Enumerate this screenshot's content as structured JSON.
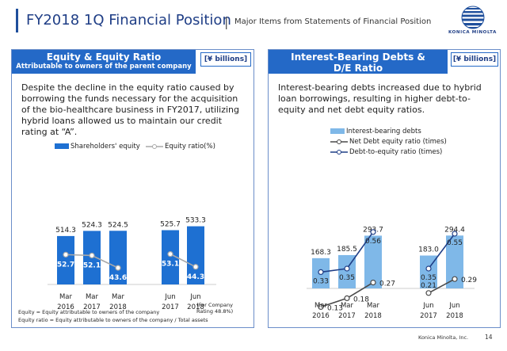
{
  "header": {
    "title": "FY2018 1Q Financial Position",
    "separator": "|",
    "subtitle": "Major Items from Statements of Financial Position",
    "logo_text": "KONICA MINOLTA"
  },
  "left_panel": {
    "title": "Equity & Equity Ratio",
    "subtitle": "Attributable to owners of the parent company",
    "unit": "[¥ billions]",
    "description": "Despite the decline in the equity ratio caused by borrowing the funds necessary for the acquisition of the bio-healthcare business in FY2017, utilizing hybrid loans allowed us to maintain our credit rating at “A”.",
    "legend": {
      "bar": "Shareholders' equity",
      "line": "Equity ratio(%)"
    },
    "rating_note_1": "(For Company",
    "rating_note_2": "Rating 48.8%)",
    "footnote_1": "Equity = Equity attributable to owners of the company",
    "footnote_2": "Equity ratio = Equity attributable to owners of the company / Total assets"
  },
  "right_panel": {
    "title_line1": "Interest-Bearing Debts &",
    "title_line2": "D/E Ratio",
    "unit": "[¥ billions]",
    "description": "Interest-bearing debts increased due to hybrid loan borrowings, resulting in higher debt-to-equity and net debt equity ratios.",
    "legend": {
      "bar": "Interest-bearing debts",
      "line1": "Net Debt equity ratio (times)",
      "line2": "Debt-to-equity ratio (times)"
    }
  },
  "chart_data": [
    {
      "type": "bar",
      "categories": [
        [
          "Mar",
          "2016"
        ],
        [
          "Mar",
          "2017"
        ],
        [
          "Mar",
          "2018"
        ],
        [
          "Jun",
          "2017"
        ],
        [
          "Jun",
          "2018"
        ]
      ],
      "series": [
        {
          "name": "Shareholders' equity",
          "kind": "bar",
          "values": [
            514.3,
            524.3,
            524.5,
            525.7,
            533.3
          ],
          "color": "#1e70d2"
        },
        {
          "name": "Equity ratio(%)",
          "kind": "line",
          "values": [
            52.7,
            52.1,
            43.6,
            53.1,
            44.3
          ],
          "color": "#a9a9a9"
        }
      ]
    },
    {
      "type": "bar",
      "categories": [
        [
          "Mar",
          "2016"
        ],
        [
          "Mar",
          "2017"
        ],
        [
          "Mar",
          "2018"
        ],
        [
          "Jun",
          "2017"
        ],
        [
          "Jun",
          "2018"
        ]
      ],
      "series": [
        {
          "name": "Interest-bearing debts",
          "kind": "bar",
          "values": [
            168.3,
            185.5,
            293.7,
            183.0,
            294.4
          ],
          "color": "#7fb8e8"
        },
        {
          "name": "Net Debt equity ratio (times)",
          "kind": "line",
          "values": [
            0.13,
            0.18,
            0.27,
            0.21,
            0.29
          ],
          "color": "#4a4a4a"
        },
        {
          "name": "Debt-to-equity ratio (times)",
          "kind": "line",
          "values": [
            0.33,
            0.35,
            0.56,
            0.35,
            0.55
          ],
          "color": "#1f3e86"
        }
      ]
    }
  ],
  "footer": {
    "company": "Konica Minolta, Inc.",
    "page": "14"
  }
}
